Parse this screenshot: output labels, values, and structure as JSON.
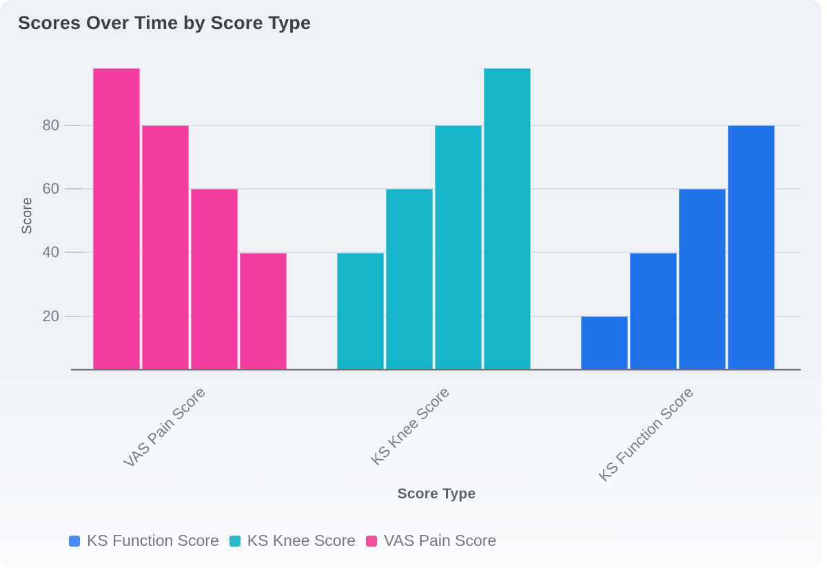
{
  "title": "Scores Over Time by Score Type",
  "chart_data": {
    "type": "bar",
    "title": "Scores Over Time by Score Type",
    "xlabel": "Score Type",
    "ylabel": "Score",
    "y_ticks": [
      20,
      40,
      60,
      80
    ],
    "y_domain": [
      3,
      100
    ],
    "grid": true,
    "legend_position": "bottom-left",
    "categories": [
      "VAS Pain Score",
      "KS Knee Score",
      "KS Function Score"
    ],
    "groups": [
      {
        "category": "VAS Pain Score",
        "series": "VAS Pain Score",
        "color": "#F33DA0",
        "values": [
          98,
          80,
          60,
          40
        ]
      },
      {
        "category": "KS Knee Score",
        "series": "KS Knee Score",
        "color": "#15B4C8",
        "values": [
          40,
          60,
          80,
          98
        ]
      },
      {
        "category": "KS Function Score",
        "series": "KS Function Score",
        "color": "#1F72E8",
        "values": [
          20,
          40,
          60,
          80
        ]
      }
    ],
    "legend": [
      {
        "label": "KS Function Score",
        "swatch_color": "#478BF3"
      },
      {
        "label": "KS Knee Score",
        "swatch_color": "#2BB9CB"
      },
      {
        "label": "VAS Pain Score",
        "swatch_color": "#F0509E"
      }
    ]
  }
}
